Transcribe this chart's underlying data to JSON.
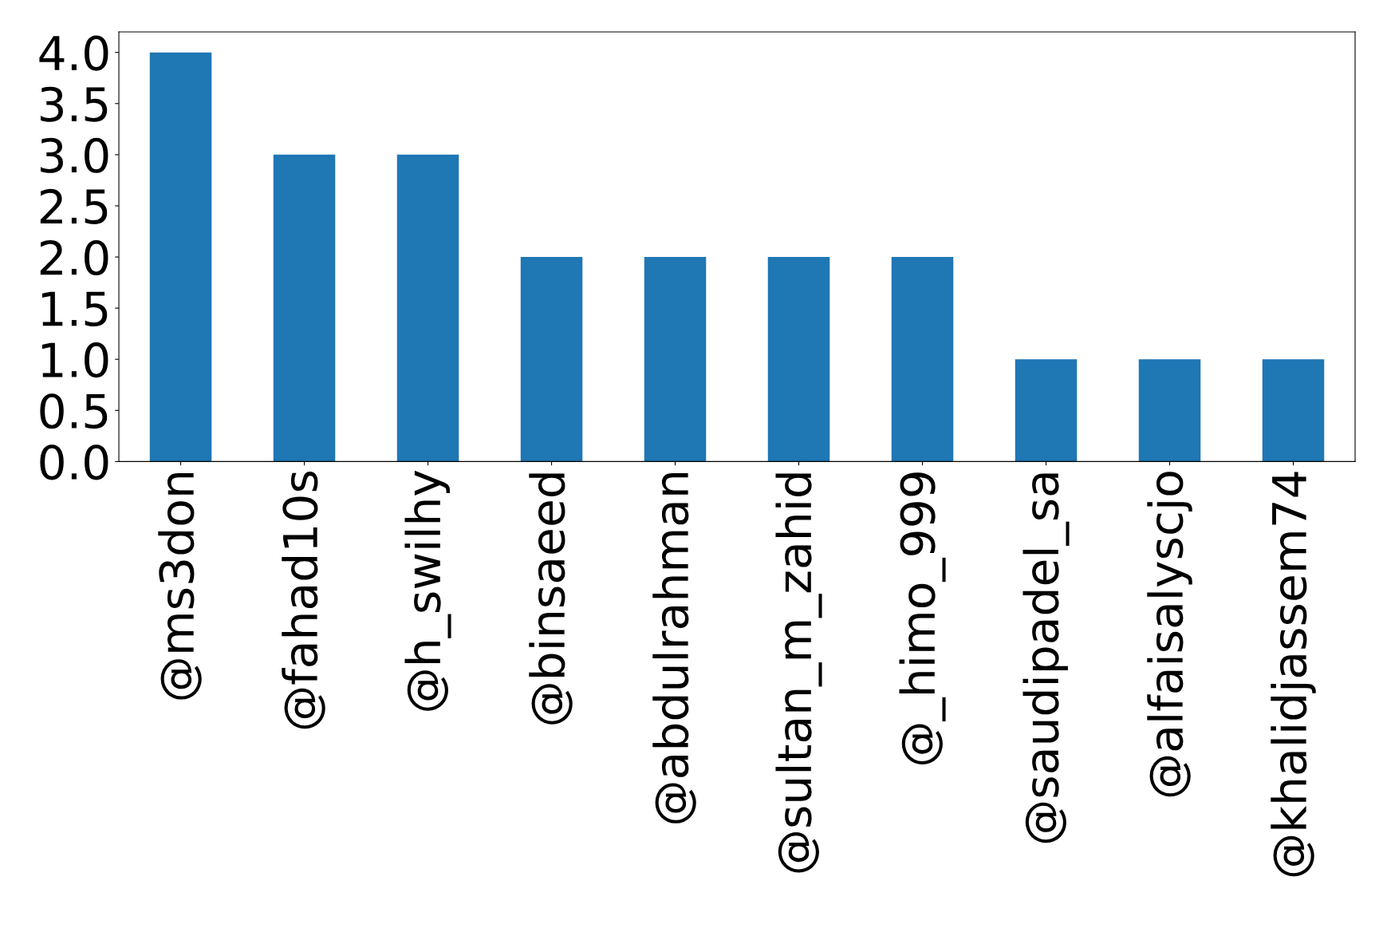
{
  "chart_data": {
    "type": "bar",
    "categories": [
      "@ms3don",
      "@fahad10s",
      "@h_swilhy",
      "@binsaeed",
      "@abdulrahman",
      "@sultan_m_zahid",
      "@_himo_999",
      "@saudipadel_sa",
      "@alfaisalyscjo",
      "@khalidjassem74"
    ],
    "values": [
      4,
      3,
      3,
      2,
      2,
      2,
      2,
      1,
      1,
      1
    ],
    "color": "#1f77b4",
    "ylim": [
      0,
      4.2
    ],
    "yticks": [
      {
        "value": 0,
        "label": "0.0"
      },
      {
        "value": 0.5,
        "label": "0.5"
      },
      {
        "value": 1,
        "label": "1.0"
      },
      {
        "value": 1.5,
        "label": "1.5"
      },
      {
        "value": 2,
        "label": "2.0"
      },
      {
        "value": 2.5,
        "label": "2.5"
      },
      {
        "value": 3,
        "label": "3.0"
      },
      {
        "value": 3.5,
        "label": "3.5"
      },
      {
        "value": 4,
        "label": "4.0"
      }
    ],
    "grid": false
  }
}
